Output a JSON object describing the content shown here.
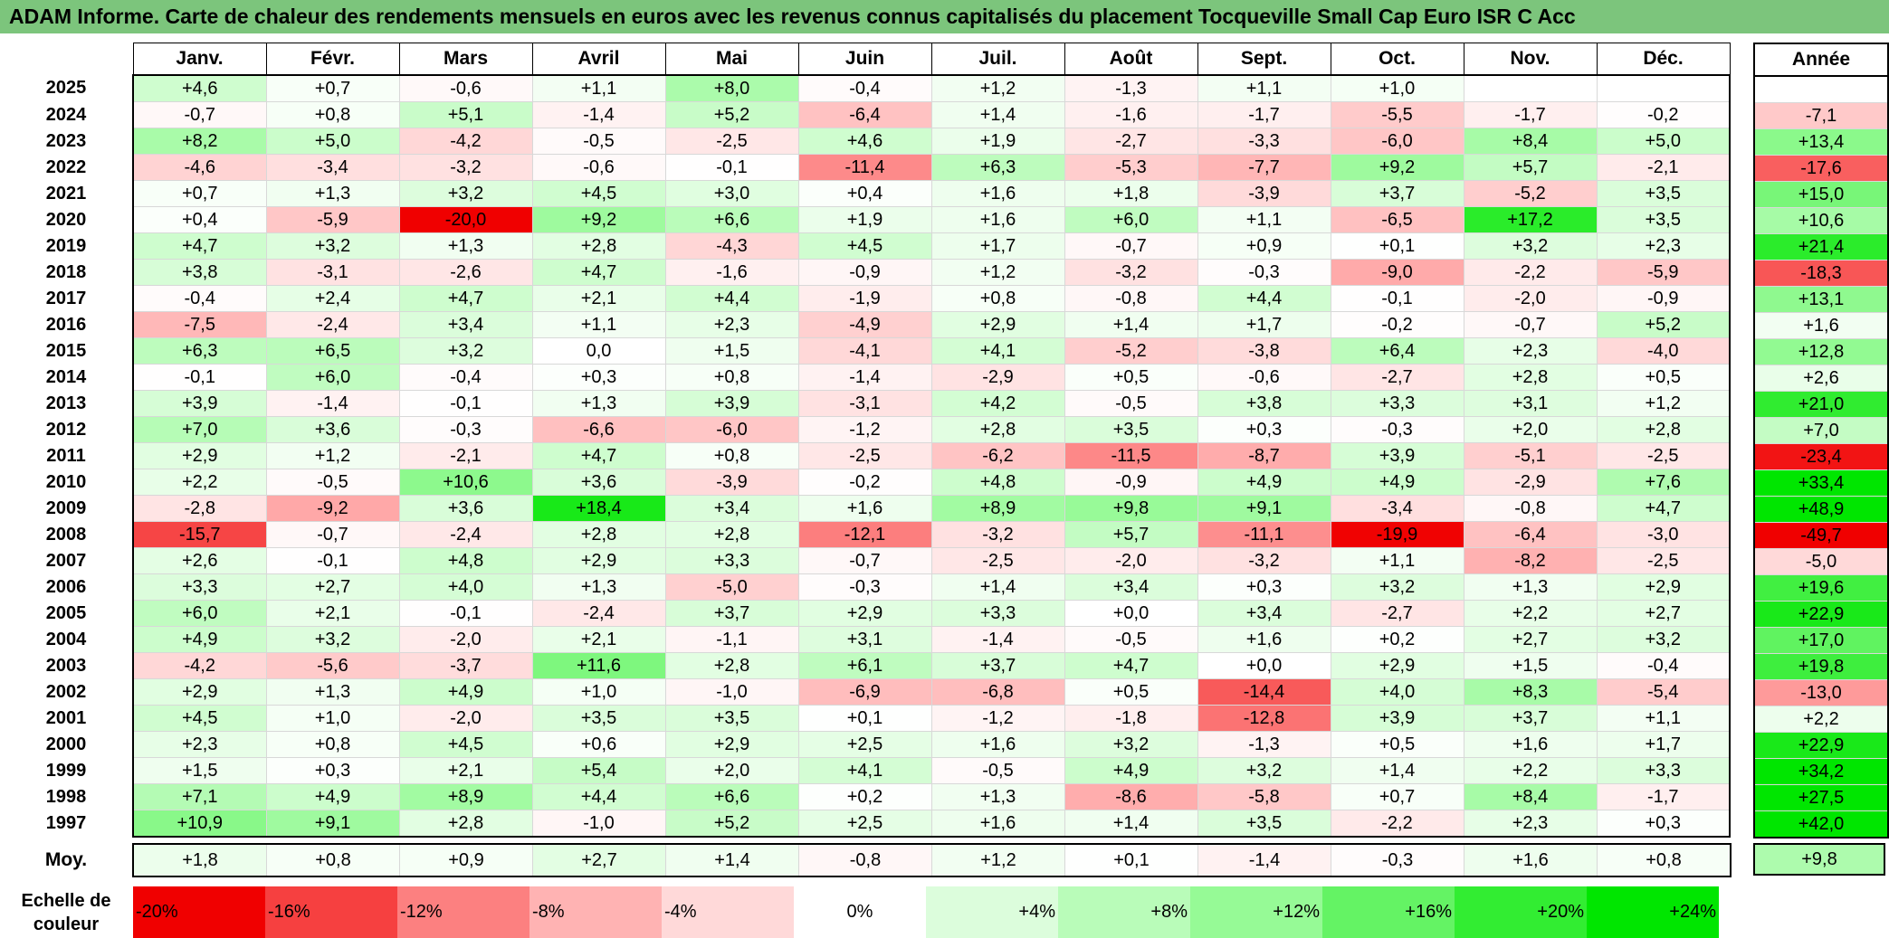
{
  "title": "ADAM Informe. Carte de chaleur des rendements mensuels en euros avec les revenus connus capitalisés du placement Tocqueville Small Cap Euro ISR C Acc",
  "months": [
    "Janv.",
    "Févr.",
    "Mars",
    "Avril",
    "Mai",
    "Juin",
    "Juil.",
    "Août",
    "Sept.",
    "Oct.",
    "Nov.",
    "Déc."
  ],
  "year_column_label": "Année",
  "average_row_label": "Moy.",
  "scale_label_line1": "Echelle de",
  "scale_label_line2": "couleur",
  "colors": {
    "title_bg": "#7cc57c",
    "neg_max": "#ff0000",
    "pos_max": "#00e600",
    "neutral": "#ffffff"
  },
  "chart_data": {
    "type": "heatmap",
    "value_unit": "%",
    "rows": [
      {
        "year": "2025",
        "values": [
          "+4,6",
          "+0,7",
          "-0,6",
          "+1,1",
          "+8,0",
          "-0,4",
          "+1,2",
          "-1,3",
          "+1,1",
          "+1,0",
          "",
          ""
        ],
        "annual": ""
      },
      {
        "year": "2024",
        "values": [
          "-0,7",
          "+0,8",
          "+5,1",
          "-1,4",
          "+5,2",
          "-6,4",
          "+1,4",
          "-1,6",
          "-1,7",
          "-5,5",
          "-1,7",
          "-0,2"
        ],
        "annual": "-7,1"
      },
      {
        "year": "2023",
        "values": [
          "+8,2",
          "+5,0",
          "-4,2",
          "-0,5",
          "-2,5",
          "+4,6",
          "+1,9",
          "-2,7",
          "-3,3",
          "-6,0",
          "+8,4",
          "+5,0"
        ],
        "annual": "+13,4"
      },
      {
        "year": "2022",
        "values": [
          "-4,6",
          "-3,4",
          "-3,2",
          "-0,6",
          "-0,1",
          "-11,4",
          "+6,3",
          "-5,3",
          "-7,7",
          "+9,2",
          "+5,7",
          "-2,1"
        ],
        "annual": "-17,6"
      },
      {
        "year": "2021",
        "values": [
          "+0,7",
          "+1,3",
          "+3,2",
          "+4,5",
          "+3,0",
          "+0,4",
          "+1,6",
          "+1,8",
          "-3,9",
          "+3,7",
          "-5,2",
          "+3,5"
        ],
        "annual": "+15,0"
      },
      {
        "year": "2020",
        "values": [
          "+0,4",
          "-5,9",
          "-20,0",
          "+9,2",
          "+6,6",
          "+1,9",
          "+1,6",
          "+6,0",
          "+1,1",
          "-6,5",
          "+17,2",
          "+3,5"
        ],
        "annual": "+10,6"
      },
      {
        "year": "2019",
        "values": [
          "+4,7",
          "+3,2",
          "+1,3",
          "+2,8",
          "-4,3",
          "+4,5",
          "+1,7",
          "-0,7",
          "+0,9",
          "+0,1",
          "+3,2",
          "+2,3"
        ],
        "annual": "+21,4"
      },
      {
        "year": "2018",
        "values": [
          "+3,8",
          "-3,1",
          "-2,6",
          "+4,7",
          "-1,6",
          "-0,9",
          "+1,2",
          "-3,2",
          "-0,3",
          "-9,0",
          "-2,2",
          "-5,9"
        ],
        "annual": "-18,3"
      },
      {
        "year": "2017",
        "values": [
          "-0,4",
          "+2,4",
          "+4,7",
          "+2,1",
          "+4,4",
          "-1,9",
          "+0,8",
          "-0,8",
          "+4,4",
          "-0,1",
          "-2,0",
          "-0,9"
        ],
        "annual": "+13,1"
      },
      {
        "year": "2016",
        "values": [
          "-7,5",
          "-2,4",
          "+3,4",
          "+1,1",
          "+2,3",
          "-4,9",
          "+2,9",
          "+1,4",
          "+1,7",
          "-0,2",
          "-0,7",
          "+5,2"
        ],
        "annual": "+1,6"
      },
      {
        "year": "2015",
        "values": [
          "+6,3",
          "+6,5",
          "+3,2",
          "0,0",
          "+1,5",
          "-4,1",
          "+4,1",
          "-5,2",
          "-3,8",
          "+6,4",
          "+2,3",
          "-4,0"
        ],
        "annual": "+12,8"
      },
      {
        "year": "2014",
        "values": [
          "-0,1",
          "+6,0",
          "-0,4",
          "+0,3",
          "+0,8",
          "-1,4",
          "-2,9",
          "+0,5",
          "-0,6",
          "-2,7",
          "+2,8",
          "+0,5"
        ],
        "annual": "+2,6"
      },
      {
        "year": "2013",
        "values": [
          "+3,9",
          "-1,4",
          "-0,1",
          "+1,3",
          "+3,9",
          "-3,1",
          "+4,2",
          "-0,5",
          "+3,8",
          "+3,3",
          "+3,1",
          "+1,2"
        ],
        "annual": "+21,0"
      },
      {
        "year": "2012",
        "values": [
          "+7,0",
          "+3,6",
          "-0,3",
          "-6,6",
          "-6,0",
          "-1,2",
          "+2,8",
          "+3,5",
          "+0,3",
          "-0,3",
          "+2,0",
          "+2,8"
        ],
        "annual": "+7,0"
      },
      {
        "year": "2011",
        "values": [
          "+2,9",
          "+1,2",
          "-2,1",
          "+4,7",
          "+0,8",
          "-2,5",
          "-6,2",
          "-11,5",
          "-8,7",
          "+3,9",
          "-5,1",
          "-2,5"
        ],
        "annual": "-23,4"
      },
      {
        "year": "2010",
        "values": [
          "+2,2",
          "-0,5",
          "+10,6",
          "+3,6",
          "-3,9",
          "-0,2",
          "+4,8",
          "-0,9",
          "+4,9",
          "+4,9",
          "-2,9",
          "+7,6"
        ],
        "annual": "+33,4"
      },
      {
        "year": "2009",
        "values": [
          "-2,8",
          "-9,2",
          "+3,6",
          "+18,4",
          "+3,4",
          "+1,6",
          "+8,9",
          "+9,8",
          "+9,1",
          "-3,4",
          "-0,8",
          "+4,7"
        ],
        "annual": "+48,9"
      },
      {
        "year": "2008",
        "values": [
          "-15,7",
          "-0,7",
          "-2,4",
          "+2,8",
          "+2,8",
          "-12,1",
          "-3,2",
          "+5,7",
          "-11,1",
          "-19,9",
          "-6,4",
          "-3,0"
        ],
        "annual": "-49,7"
      },
      {
        "year": "2007",
        "values": [
          "+2,6",
          "-0,1",
          "+4,8",
          "+2,9",
          "+3,3",
          "-0,7",
          "-2,5",
          "-2,0",
          "-3,2",
          "+1,1",
          "-8,2",
          "-2,5"
        ],
        "annual": "-5,0"
      },
      {
        "year": "2006",
        "values": [
          "+3,3",
          "+2,7",
          "+4,0",
          "+1,3",
          "-5,0",
          "-0,3",
          "+1,4",
          "+3,4",
          "+0,3",
          "+3,2",
          "+1,3",
          "+2,9"
        ],
        "annual": "+19,6"
      },
      {
        "year": "2005",
        "values": [
          "+6,0",
          "+2,1",
          "-0,1",
          "-2,4",
          "+3,7",
          "+2,9",
          "+3,3",
          "+0,0",
          "+3,4",
          "-2,7",
          "+2,2",
          "+2,7"
        ],
        "annual": "+22,9"
      },
      {
        "year": "2004",
        "values": [
          "+4,9",
          "+3,2",
          "-2,0",
          "+2,1",
          "-1,1",
          "+3,1",
          "-1,4",
          "-0,5",
          "+1,6",
          "+0,2",
          "+2,7",
          "+3,2"
        ],
        "annual": "+17,0"
      },
      {
        "year": "2003",
        "values": [
          "-4,2",
          "-5,6",
          "-3,7",
          "+11,6",
          "+2,8",
          "+6,1",
          "+3,7",
          "+4,7",
          "+0,0",
          "+2,9",
          "+1,5",
          "-0,4"
        ],
        "annual": "+19,8"
      },
      {
        "year": "2002",
        "values": [
          "+2,9",
          "+1,3",
          "+4,9",
          "+1,0",
          "-1,0",
          "-6,9",
          "-6,8",
          "+0,5",
          "-14,4",
          "+4,0",
          "+8,3",
          "-5,4"
        ],
        "annual": "-13,0"
      },
      {
        "year": "2001",
        "values": [
          "+4,5",
          "+1,0",
          "-2,0",
          "+3,5",
          "+3,5",
          "+0,1",
          "-1,2",
          "-1,8",
          "-12,8",
          "+3,9",
          "+3,7",
          "+1,1"
        ],
        "annual": "+2,2"
      },
      {
        "year": "2000",
        "values": [
          "+2,3",
          "+0,8",
          "+4,5",
          "+0,6",
          "+2,9",
          "+2,5",
          "+1,6",
          "+3,2",
          "-1,3",
          "+0,5",
          "+1,6",
          "+1,7"
        ],
        "annual": "+22,9"
      },
      {
        "year": "1999",
        "values": [
          "+1,5",
          "+0,3",
          "+2,1",
          "+5,4",
          "+2,0",
          "+4,1",
          "-0,5",
          "+4,9",
          "+3,2",
          "+1,4",
          "+2,2",
          "+3,3"
        ],
        "annual": "+34,2"
      },
      {
        "year": "1998",
        "values": [
          "+7,1",
          "+4,9",
          "+8,9",
          "+4,4",
          "+6,6",
          "+0,2",
          "+1,3",
          "-8,6",
          "-5,8",
          "+0,7",
          "+8,4",
          "-1,7"
        ],
        "annual": "+27,5"
      },
      {
        "year": "1997",
        "values": [
          "+10,9",
          "+9,1",
          "+2,8",
          "-1,0",
          "+5,2",
          "+2,5",
          "+1,6",
          "+1,4",
          "+3,5",
          "-2,2",
          "+2,3",
          "+0,3"
        ],
        "annual": "+42,0"
      }
    ],
    "averages": [
      "+1,8",
      "+0,8",
      "+0,9",
      "+2,7",
      "+1,4",
      "-0,8",
      "+1,2",
      "+0,1",
      "-1,4",
      "-0,3",
      "+1,6",
      "+0,8"
    ],
    "annual_average": "+9,8",
    "color_scale": [
      "-20%",
      "-16%",
      "-12%",
      "-8%",
      "-4%",
      "0%",
      "+4%",
      "+8%",
      "+12%",
      "+16%",
      "+20%",
      "+24%"
    ],
    "color_scale_values": [
      -20,
      -16,
      -12,
      -8,
      -4,
      0,
      4,
      8,
      12,
      16,
      20,
      24
    ]
  }
}
